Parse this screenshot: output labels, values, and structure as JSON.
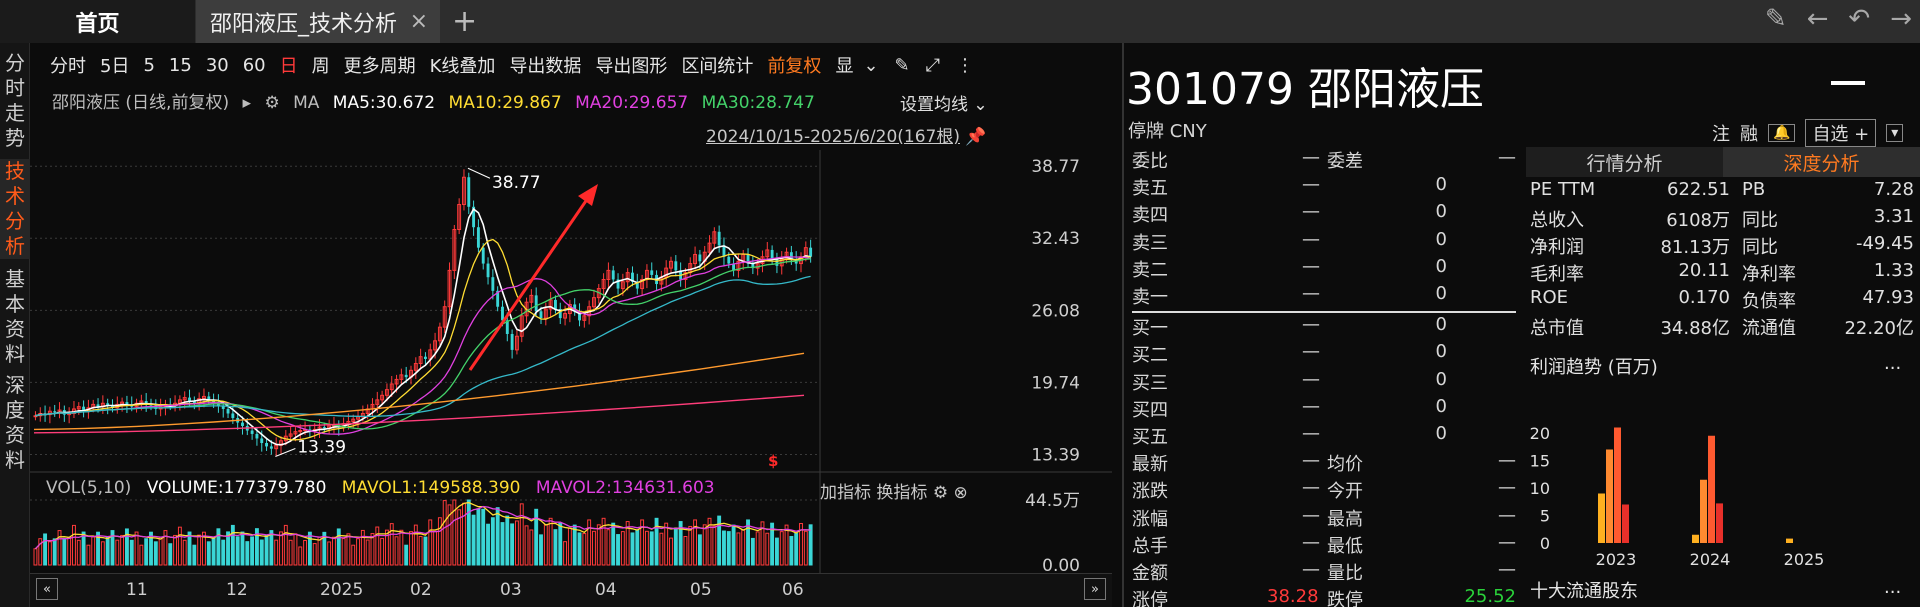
{
  "tabs": {
    "home": "首页",
    "active": "邵阳液压_技术分析",
    "close": "×",
    "add": "+"
  },
  "leftnav": [
    "分时走势",
    "技术分析",
    "基本资料",
    "深度资料"
  ],
  "toolbar": {
    "items": [
      "分时",
      "5日",
      "5",
      "15",
      "30",
      "60",
      "日",
      "周",
      "更多周期",
      "K线叠加",
      "导出数据",
      "导出图形",
      "区间统计",
      "前复权",
      "显"
    ],
    "active": "日",
    "fq": "前复权"
  },
  "ma_legend": {
    "name": "邵阳液压 (日线,前复权)",
    "ma": "MA",
    "ma5": "MA5:30.672",
    "ma10": "MA10:29.867",
    "ma20": "MA20:29.657",
    "ma30": "MA30:28.747",
    "set": "设置均线",
    "range": "2024/10/15-2025/6/20(167根)"
  },
  "colors": {
    "ma5": "#ffffff",
    "ma10": "#ffdd33",
    "ma20": "#e040e0",
    "ma30": "#44d26a",
    "ma60": "#35b9c9",
    "ma120": "#ff9a2e",
    "ma250": "#ff3d7a",
    "up": "#ff3a3a",
    "down": "#3ad6d6",
    "accent": "#ff5b1a"
  },
  "chart_data": {
    "type": "candlestick",
    "y_labels": [
      "38.77",
      "32.43",
      "26.08",
      "19.74",
      "13.39"
    ],
    "y_values": [
      38.77,
      32.43,
      26.08,
      19.74,
      13.39
    ],
    "ylim": [
      12.2,
      40.2
    ],
    "x_labels": [
      "11",
      "12",
      "2025",
      "02",
      "03",
      "04",
      "05",
      "06"
    ],
    "high_annotation": "38.77",
    "low_annotation": "13.39",
    "close_series": [
      16.8,
      17.0,
      16.9,
      17.2,
      17.1,
      17.3,
      16.9,
      17.0,
      17.4,
      17.6,
      17.3,
      17.5,
      17.8,
      17.6,
      17.9,
      17.7,
      17.5,
      17.8,
      18.0,
      17.8,
      17.6,
      17.9,
      18.1,
      17.9,
      17.7,
      17.4,
      17.6,
      17.8,
      17.7,
      17.9,
      18.2,
      18.4,
      18.1,
      17.9,
      18.3,
      18.5,
      18.2,
      18.0,
      17.7,
      17.4,
      17.0,
      16.6,
      16.2,
      15.9,
      15.5,
      15.2,
      14.8,
      14.4,
      14.1,
      13.9,
      14.2,
      14.6,
      15.0,
      15.2,
      15.4,
      15.5,
      15.6,
      15.4,
      15.6,
      15.8,
      15.7,
      15.9,
      16.0,
      15.8,
      16.1,
      16.3,
      16.5,
      16.7,
      17.0,
      17.4,
      17.8,
      18.2,
      18.6,
      19.1,
      19.6,
      20.0,
      20.4,
      20.2,
      20.8,
      21.4,
      22.0,
      21.8,
      22.6,
      23.4,
      24.6,
      26.4,
      29.6,
      33.2,
      35.4,
      37.8,
      35.2,
      33.4,
      31.6,
      30.2,
      29.0,
      27.8,
      26.4,
      25.2,
      24.0,
      22.6,
      23.8,
      25.6,
      26.8,
      27.4,
      26.0,
      25.4,
      26.2,
      27.0,
      26.2,
      25.4,
      25.8,
      26.6,
      26.0,
      25.2,
      25.6,
      26.4,
      27.2,
      28.0,
      28.8,
      29.6,
      28.8,
      28.0,
      28.6,
      29.4,
      28.6,
      28.0,
      28.8,
      29.6,
      29.2,
      28.4,
      29.0,
      29.8,
      30.4,
      29.6,
      28.8,
      29.4,
      30.2,
      31.0,
      30.4,
      31.2,
      32.0,
      33.0,
      31.8,
      30.8,
      30.2,
      29.6,
      30.4,
      31.0,
      30.2,
      29.8,
      30.2,
      30.8,
      31.4,
      30.6,
      30.0,
      30.6,
      31.2,
      30.6,
      30.2,
      30.8,
      31.6,
      30.8
    ],
    "volume": {
      "label": "VOL(5,10)",
      "volume": "VOLUME:177379.780",
      "mavol1": "MAVOL1:149588.390",
      "mavol2": "MAVOL2:134631.603",
      "y_top": "44.5万",
      "y_bottom": "0.00"
    }
  },
  "vol_right": {
    "add": "加指标",
    "switch": "换指标"
  },
  "quote": {
    "code_name": "301079 邵阳液压",
    "status": "停牌 CNY",
    "tools": [
      "注",
      "融",
      "自选 +"
    ],
    "orderbook": [
      {
        "k": "委比",
        "v": "—",
        "k2": "委差",
        "v2": "—"
      },
      {
        "k": "卖五",
        "v": "—",
        "c": "0"
      },
      {
        "k": "卖四",
        "v": "—",
        "c": "0"
      },
      {
        "k": "卖三",
        "v": "—",
        "c": "0"
      },
      {
        "k": "卖二",
        "v": "—",
        "c": "0"
      },
      {
        "k": "卖一",
        "v": "—",
        "c": "0"
      },
      {
        "k": "买一",
        "v": "—",
        "c": "0"
      },
      {
        "k": "买二",
        "v": "—",
        "c": "0"
      },
      {
        "k": "买三",
        "v": "—",
        "c": "0"
      },
      {
        "k": "买四",
        "v": "—",
        "c": "0"
      },
      {
        "k": "买五",
        "v": "—",
        "c": "0"
      },
      {
        "k": "最新",
        "v": "—",
        "k2": "均价",
        "v2": "—"
      },
      {
        "k": "涨跌",
        "v": "—",
        "k2": "今开",
        "v2": "—"
      },
      {
        "k": "涨幅",
        "v": "—",
        "k2": "最高",
        "v2": "—"
      },
      {
        "k": "总手",
        "v": "—",
        "k2": "最低",
        "v2": "—"
      },
      {
        "k": "金额",
        "v": "—",
        "k2": "量比",
        "v2": "—"
      },
      {
        "k": "涨停",
        "v": "38.28",
        "k2": "跌停",
        "v2": "25.52"
      }
    ],
    "tabs": [
      "行情分析",
      "深度分析"
    ],
    "fin": [
      {
        "a": "PE TTM",
        "b": "622.51",
        "c": "PB",
        "d": "7.28"
      },
      {
        "a": "总收入",
        "b": "6108万",
        "c": "同比",
        "d": "3.31"
      },
      {
        "a": "净利润",
        "b": "81.13万",
        "c": "同比",
        "d": "-49.45"
      },
      {
        "a": "毛利率",
        "b": "20.11",
        "c": "净利率",
        "d": "1.33"
      },
      {
        "a": "ROE",
        "b": "0.170",
        "c": "负债率",
        "d": "47.93"
      },
      {
        "a": "总市值",
        "b": "34.88亿",
        "c": "流通值",
        "d": "22.20亿"
      }
    ],
    "profit_title": "利润趋势 (百万)",
    "profit_more": "...",
    "profit_chart": {
      "type": "bar",
      "categories": [
        "2023",
        "2024",
        "2025"
      ],
      "y_ticks": [
        "20",
        "15",
        "10",
        "5",
        "0"
      ],
      "series": [
        {
          "values": [
            9,
            1.5,
            0.8
          ],
          "color": "#ffb020"
        },
        {
          "values": [
            17,
            11.5,
            0
          ],
          "color": "#ff8a30"
        },
        {
          "values": [
            21,
            19.5,
            0
          ],
          "color": "#ff5a30"
        },
        {
          "values": [
            7,
            7.2,
            0
          ],
          "color": "#e8302a"
        }
      ]
    },
    "holders": "十大流通股东",
    "holders_more": "..."
  }
}
